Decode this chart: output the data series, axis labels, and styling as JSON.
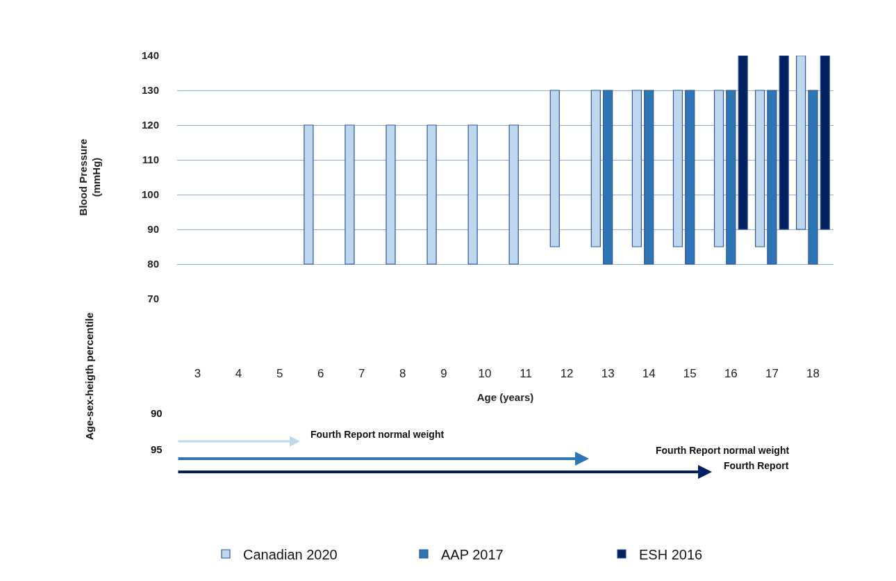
{
  "chart_data": {
    "type": "bar",
    "xlabel": "Age (years)",
    "ylabel": "Blood Pressure\n(mmHg)",
    "categories": [
      "3",
      "4",
      "5",
      "6",
      "7",
      "8",
      "9",
      "10",
      "11",
      "12",
      "13",
      "14",
      "15",
      "16",
      "17",
      "18"
    ],
    "series": [
      {
        "name": "Canadian 2020",
        "color": "#bdd7ee",
        "base": [
          null,
          null,
          null,
          80,
          80,
          80,
          80,
          80,
          80,
          85,
          85,
          85,
          85,
          85,
          85,
          90
        ],
        "values": [
          null,
          null,
          null,
          40,
          40,
          40,
          40,
          40,
          40,
          45,
          45,
          45,
          45,
          45,
          45,
          50
        ]
      },
      {
        "name": "AAP 2017",
        "color": "#2e75b6",
        "base": [
          null,
          null,
          null,
          null,
          null,
          null,
          null,
          null,
          null,
          null,
          80,
          80,
          80,
          80,
          80,
          80
        ],
        "values": [
          null,
          null,
          null,
          null,
          null,
          null,
          null,
          null,
          null,
          null,
          50,
          50,
          50,
          50,
          50,
          50
        ]
      },
      {
        "name": "ESH 2016",
        "color": "#002060",
        "base": [
          null,
          null,
          null,
          null,
          null,
          null,
          null,
          null,
          null,
          null,
          null,
          null,
          null,
          90,
          90,
          90
        ],
        "values": [
          null,
          null,
          null,
          null,
          null,
          null,
          null,
          null,
          null,
          null,
          null,
          null,
          null,
          50,
          50,
          50
        ]
      }
    ],
    "ylim": [
      70,
      140
    ],
    "yticks": [
      70,
      80,
      90,
      100,
      110,
      120,
      130,
      140
    ],
    "grid": "y",
    "legend": "bottom",
    "annotations": [
      "Age-sex-heigth percentile",
      "90",
      "95",
      "Fourth Report normal weight",
      "Fourth Report normal weight",
      "Fourth Report"
    ]
  }
}
